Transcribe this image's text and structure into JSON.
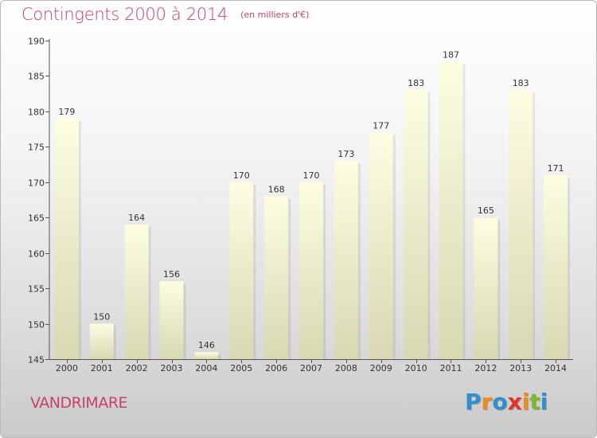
{
  "header": {
    "title": "Contingents 2000 à 2014",
    "unit": "(en milliers d'€)"
  },
  "footer": {
    "place": "VANDRIMARE",
    "logo_letters": [
      {
        "ch": "P",
        "color": "#2f8fd0"
      },
      {
        "ch": "r",
        "color": "#f08a1c"
      },
      {
        "ch": "o",
        "color": "#2f8fd0"
      },
      {
        "ch": "x",
        "color": "#e2332a"
      },
      {
        "ch": "i",
        "color": "#f08a1c"
      },
      {
        "ch": "t",
        "color": "#7bb82b"
      },
      {
        "ch": "i",
        "color": "#2f8fd0"
      }
    ]
  },
  "colors": {
    "title": "#c7416a",
    "bar_top": "#fdfde2",
    "bar_bottom": "#d8d8b2",
    "axis": "#555555",
    "label": "#333333"
  },
  "chart_data": {
    "type": "bar",
    "categories": [
      "2000",
      "2001",
      "2002",
      "2003",
      "2004",
      "2005",
      "2006",
      "2007",
      "2008",
      "2009",
      "2010",
      "2011",
      "2012",
      "2013",
      "2014"
    ],
    "values": [
      179,
      150,
      164,
      156,
      146,
      170,
      168,
      170,
      173,
      177,
      183,
      187,
      165,
      183,
      171
    ],
    "ylim": [
      145,
      190
    ],
    "yticks": [
      145,
      150,
      155,
      160,
      165,
      170,
      175,
      180,
      185,
      190
    ],
    "grid": false,
    "data_labels": true
  }
}
